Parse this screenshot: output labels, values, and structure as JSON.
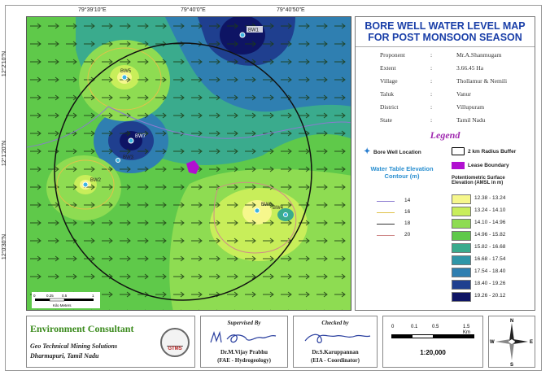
{
  "map": {
    "title_line1": "BORE WELL WATER LEVEL MAP",
    "title_line2": "FOR POST MONSOON SEASON",
    "coords_top": [
      "79°39'10\"E",
      "79°40'0\"E",
      "79°40'50\"E"
    ],
    "coords_left": [
      "12°2'10\"N",
      "12°1'20\"N",
      "12°0'30\"N"
    ],
    "wells": [
      "BW1",
      "BW2",
      "BW3",
      "BW4",
      "BW5",
      "BW6",
      "BW7"
    ],
    "scale_bar_labels": [
      "0",
      "0.25",
      "0.5",
      "1"
    ],
    "scale_bar_unit": "Kilo Meters",
    "colors": {
      "yellow": "#f3f58a",
      "light_green": "#8edc52",
      "mid_green": "#5fc94a",
      "teal": "#3aab8d",
      "blue": "#2f7fb1",
      "dark_blue": "#1f3f8f",
      "navy": "#0e1464",
      "lease": "#b10fd0",
      "title_blue": "#1a3fa8",
      "legend_purple": "#a02ab0"
    }
  },
  "project_info": [
    {
      "key": "Proponent",
      "value": "Mr.A.Shanmugam"
    },
    {
      "key": "Extent",
      "value": "3.66.45 Ha"
    },
    {
      "key": "Village",
      "value": "Thollamur & Nemili"
    },
    {
      "key": "Taluk",
      "value": "Vanur"
    },
    {
      "key": "District",
      "value": "Villupuram"
    },
    {
      "key": "State",
      "value": "Tamil Nadu"
    }
  ],
  "legend": {
    "title": "Legend",
    "bore_well": "Bore Well Location",
    "buffer": "2 km Radius Buffer",
    "lease": "Lease Boundary",
    "contour_title_1": "Water Table Elevation",
    "contour_title_2": "Contour (m)",
    "contours": [
      "14",
      "16",
      "18",
      "20"
    ],
    "contour_colors": [
      "#8a7ad0",
      "#e0c24a",
      "#333333",
      "#d08a8a"
    ],
    "surface_title_1": "Potentiometric Surface",
    "surface_title_2": "Elevation (AMSL in m)",
    "classes": [
      {
        "range": "12.38 - 13.24",
        "color": "#f6f78c"
      },
      {
        "range": "13.24 - 14.10",
        "color": "#c8ee5a"
      },
      {
        "range": "14.10 - 14.96",
        "color": "#8edc52"
      },
      {
        "range": "14.96 - 15.82",
        "color": "#5fc94a"
      },
      {
        "range": "15.82 - 16.68",
        "color": "#3aab8d"
      },
      {
        "range": "16.68 - 17.54",
        "color": "#2f96a8"
      },
      {
        "range": "17.54 - 18.40",
        "color": "#2f7fb1"
      },
      {
        "range": "18.40 - 19.26",
        "color": "#1f3f8f"
      },
      {
        "range": "19.26 - 20.12",
        "color": "#0e1464"
      }
    ]
  },
  "footer": {
    "consultant_title": "Environment Consultant",
    "consultant_line1": "Geo Technical Mining Solutions",
    "consultant_line2": "Dharmapuri, Tamil Nadu",
    "logo_text": "GTMS",
    "supervised_label": "Supervised By",
    "supervised_name": "Dr.M.Vijay Prabhu",
    "supervised_role": "(FAE - Hydrogeology)",
    "checked_label": "Checked by",
    "checked_name": "Dr.S.Karuppannan",
    "checked_role": "(EIA - Coordinator)",
    "scale_labels": [
      "0",
      "0.1",
      "0.5",
      "1.5"
    ],
    "scale_unit": "Km",
    "scale_ratio": "1:20,000",
    "north_letters": [
      "N",
      "S",
      "E",
      "W"
    ]
  }
}
